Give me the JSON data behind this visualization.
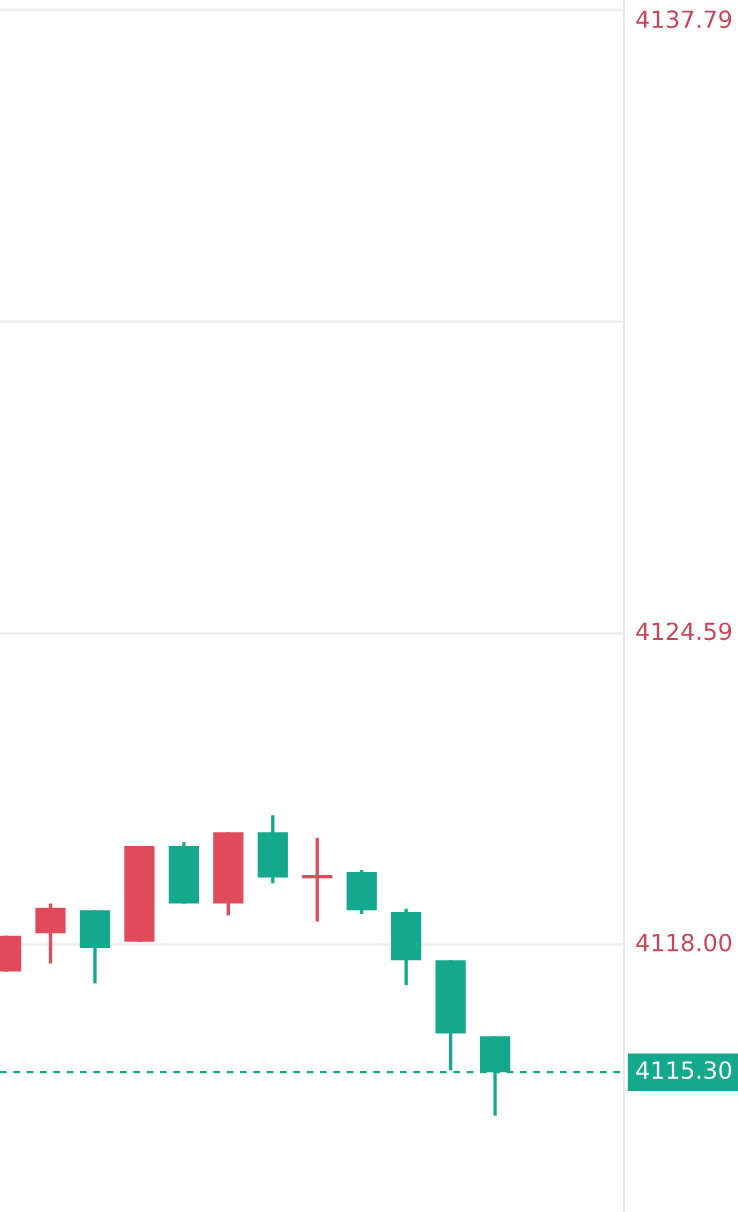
{
  "chart_data": {
    "type": "candlestick",
    "categories": [
      null,
      null,
      null,
      null,
      null,
      null,
      null,
      null,
      null,
      null,
      null,
      null
    ],
    "ohlc": [
      [
        4117.43,
        4118.19,
        4117.43,
        4118.19
      ],
      [
        4118.24,
        4118.87,
        4117.6,
        4118.78
      ],
      [
        4118.73,
        4118.73,
        4117.18,
        4117.93
      ],
      [
        4118.06,
        4120.09,
        4118.06,
        4120.09
      ],
      [
        4120.09,
        4120.17,
        4118.87,
        4118.87
      ],
      [
        4118.87,
        4120.38,
        4118.62,
        4120.38
      ],
      [
        4120.38,
        4120.74,
        4119.3,
        4119.42
      ],
      [
        4119.44,
        4120.26,
        4118.49,
        4119.44
      ],
      [
        4119.54,
        4119.58,
        4118.65,
        4118.73
      ],
      [
        4118.69,
        4118.76,
        4117.14,
        4117.67
      ],
      [
        4117.67,
        4117.67,
        4115.34,
        4116.12
      ],
      [
        4116.06,
        4116.06,
        4114.38,
        4115.3
      ]
    ],
    "colors": [
      "#e04b5c",
      "#e04b5c",
      "#14a88c",
      "#e04b5c",
      "#14a88c",
      "#e04b5c",
      "#14a88c",
      "#e04b5c",
      "#14a88c",
      "#14a88c",
      "#14a88c",
      "#14a88c"
    ],
    "ylim": [
      4112.34,
      4138.0
    ],
    "yticks": [
      4137.79,
      {
        "value": 4131.19,
        "label": null
      },
      4124.59,
      {
        "value": 4118,
        "label": "4118.00"
      }
    ],
    "grid": "y",
    "tick_labels": "y",
    "ref_lines": [
      {
        "axis": "y",
        "value": 4115.3,
        "label": "4115.30",
        "color": "#14a88c",
        "line_style": "dashed"
      }
    ]
  }
}
